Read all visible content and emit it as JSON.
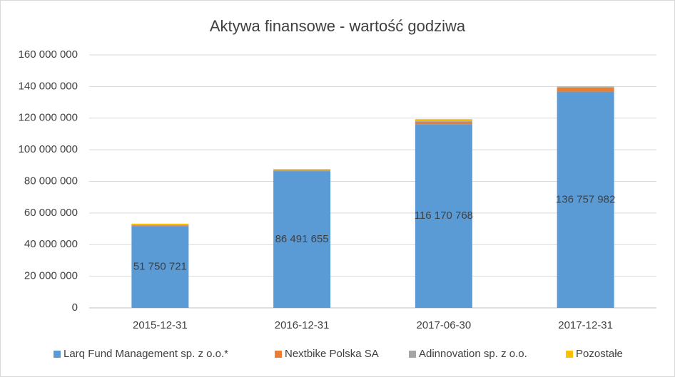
{
  "chart_data": {
    "type": "stacked_bar",
    "title": "Aktywa finansowe - wartość godziwa",
    "categories": [
      "2015-12-31",
      "2016-12-31",
      "2017-06-30",
      "2017-12-31"
    ],
    "series": [
      {
        "name": "Larq Fund Management sp. z o.o.*",
        "color": "#5b9bd5",
        "values": [
          51750721,
          86491655,
          116170768,
          136757982
        ],
        "value_labels": [
          "51 750 721",
          "86 491 655",
          "116 170 768",
          "136 757 982"
        ]
      },
      {
        "name": "Nextbike Polska SA",
        "color": "#ed7d31",
        "values": [
          300000,
          300000,
          1500000,
          2500000
        ]
      },
      {
        "name": "Adinnovation sp. z o.o.",
        "color": "#a5a5a5",
        "values": [
          500000,
          400000,
          800000,
          400000
        ]
      },
      {
        "name": "Pozostałe",
        "color": "#ffc000",
        "values": [
          700000,
          600000,
          900000,
          500000
        ]
      }
    ],
    "ylim": [
      0,
      160000000
    ],
    "yticks": [
      0,
      {
        "value": 20000000,
        "label": "20 000 000"
      },
      {
        "value": 40000000,
        "label": "40 000 000"
      },
      {
        "value": 60000000,
        "label": "60 000 000"
      },
      {
        "value": 80000000,
        "label": "80 000 000"
      },
      {
        "value": 100000000,
        "label": "100 000 000"
      },
      {
        "value": 120000000,
        "label": "120 000 000"
      },
      {
        "value": 140000000,
        "label": "140 000 000"
      },
      {
        "value": 160000000,
        "label": "160 000 000"
      }
    ],
    "grid": true,
    "legend": "bottom"
  }
}
